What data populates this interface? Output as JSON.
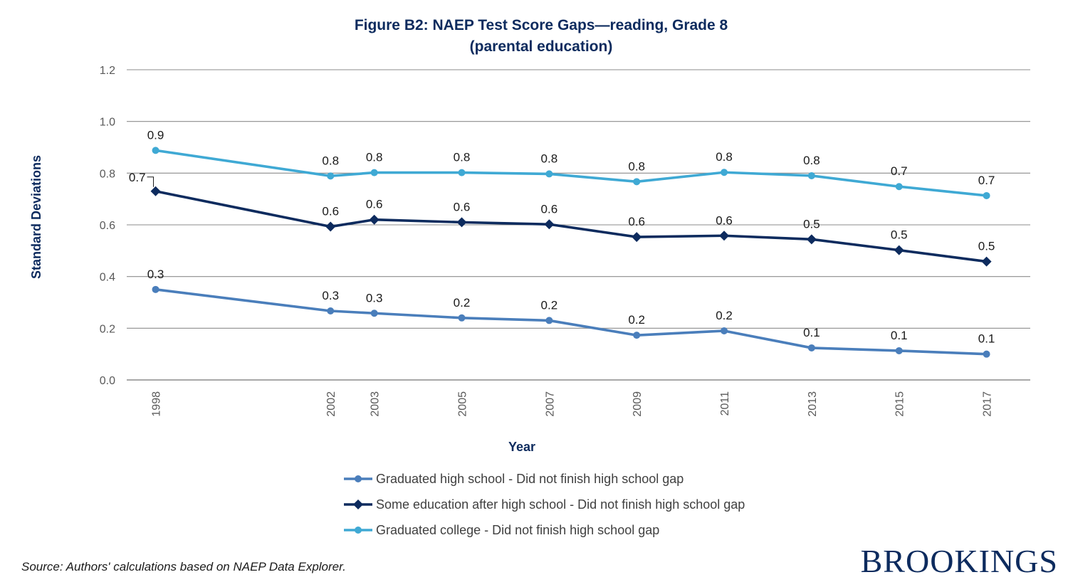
{
  "chart_data": {
    "type": "line",
    "title": "Figure B2: NAEP Test Score Gaps—reading, Grade 8",
    "subtitle": "(parental education)",
    "xlabel": "Year",
    "ylabel": "Standard Deviations",
    "categories": [
      "1998",
      "2002",
      "2003",
      "2005",
      "2007",
      "2009",
      "2011",
      "2013",
      "2015",
      "2017"
    ],
    "x_numeric": [
      1998,
      2002,
      2003,
      2005,
      2007,
      2009,
      2011,
      2013,
      2015,
      2017
    ],
    "ylim": [
      0,
      1.2
    ],
    "yticks": [
      "0.0",
      "0.2",
      "0.4",
      "0.6",
      "0.8",
      "1.0",
      "1.2"
    ],
    "grid": true,
    "legend_position": "bottom",
    "series": [
      {
        "name": "Graduated high school - Did not finish high school gap",
        "color": "#4a7ebb",
        "marker": "circle",
        "values": [
          0.35,
          0.267,
          0.258,
          0.24,
          0.23,
          0.173,
          0.19,
          0.124,
          0.113,
          0.1
        ],
        "labels": [
          "0.3",
          "0.3",
          "0.3",
          "0.2",
          "0.2",
          "0.2",
          "0.2",
          "0.1",
          "0.1",
          "0.1"
        ]
      },
      {
        "name": "Some education after high school - Did not finish high school gap",
        "color": "#0d2b5e",
        "marker": "diamond",
        "values": [
          0.73,
          0.593,
          0.62,
          0.61,
          0.602,
          0.553,
          0.558,
          0.544,
          0.502,
          0.458
        ],
        "labels": [
          "0.7",
          "0.6",
          "0.6",
          "0.6",
          "0.6",
          "0.6",
          "0.6",
          "0.5",
          "0.5",
          "0.5"
        ]
      },
      {
        "name": "Graduated college - Did not finish high school gap",
        "color": "#3fa9d4",
        "marker": "circle",
        "values": [
          0.888,
          0.789,
          0.802,
          0.802,
          0.797,
          0.767,
          0.803,
          0.79,
          0.748,
          0.713
        ],
        "labels": [
          "0.9",
          "0.8",
          "0.8",
          "0.8",
          "0.8",
          "0.8",
          "0.8",
          "0.8",
          "0.7",
          "0.7"
        ]
      }
    ]
  },
  "footer": {
    "source": "Source: Authors' calculations based on NAEP Data Explorer.",
    "brand": "BROOKINGS"
  }
}
